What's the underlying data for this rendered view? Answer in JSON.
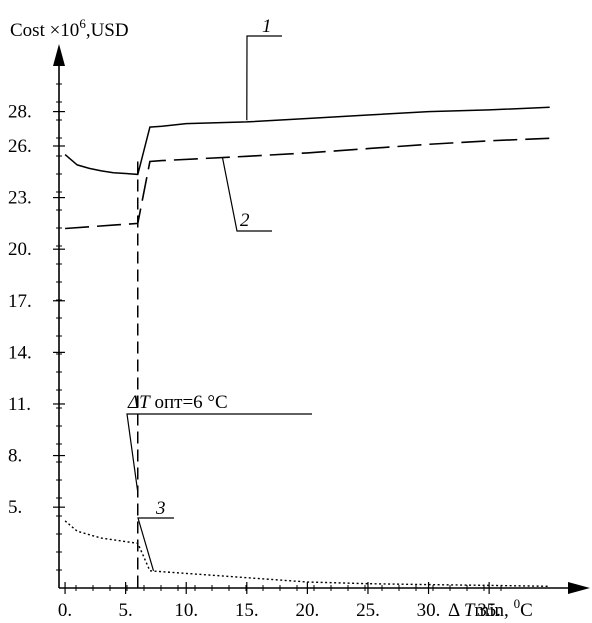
{
  "chart_data": {
    "type": "line",
    "ylabel_text": "Cost ×10",
    "ylabel_exp": "6",
    "ylabel_unit": ",USD",
    "xlabel_prefix": "Δ ",
    "xlabel_var": "T",
    "xlabel_sub": "min, ",
    "xlabel_exp": "0",
    "xlabel_unit": "C",
    "xlim": [
      -0.5,
      42.5
    ],
    "ylim": [
      0.3,
      31
    ],
    "x_ticks": [
      0,
      5,
      10,
      15,
      20,
      25,
      30,
      35
    ],
    "x_tick_labels": [
      "0.",
      "5.",
      "10.",
      "15.",
      "20.",
      "25.",
      "30.",
      "35."
    ],
    "y_ticks": [
      5,
      8,
      11,
      14,
      17,
      20,
      23,
      26,
      28
    ],
    "y_tick_labels": [
      "5.",
      "8.",
      "11.",
      "14.",
      "17.",
      "20.",
      "23.",
      "26.",
      "28."
    ],
    "series": [
      {
        "label": "1",
        "style": "solid",
        "x": [
          0,
          1,
          2,
          3,
          4,
          5,
          6,
          7,
          8,
          10,
          15,
          20,
          25,
          30,
          35,
          40
        ],
        "y": [
          25.5,
          24.9,
          24.7,
          24.55,
          24.45,
          24.4,
          24.35,
          27.1,
          27.15,
          27.3,
          27.4,
          27.6,
          27.8,
          28.0,
          28.1,
          28.25
        ]
      },
      {
        "label": "2",
        "style": "dashed",
        "x": [
          0,
          4,
          6,
          7,
          8,
          15,
          20,
          25,
          30,
          35,
          40
        ],
        "y": [
          21.2,
          21.4,
          21.5,
          25.1,
          25.15,
          25.4,
          25.6,
          25.85,
          26.1,
          26.3,
          26.45
        ]
      },
      {
        "label": "3",
        "style": "dotted",
        "x": [
          0,
          1,
          2,
          3,
          4,
          5,
          6,
          7,
          8,
          10,
          15,
          20,
          25,
          30,
          35,
          40
        ],
        "y": [
          4.2,
          3.6,
          3.4,
          3.2,
          3.1,
          3.0,
          2.9,
          1.3,
          1.25,
          1.15,
          0.9,
          0.65,
          0.55,
          0.5,
          0.45,
          0.4
        ]
      }
    ],
    "annotations": [
      {
        "text_var": "ΔT",
        "text_rest": " опт=6 °C"
      }
    ]
  }
}
